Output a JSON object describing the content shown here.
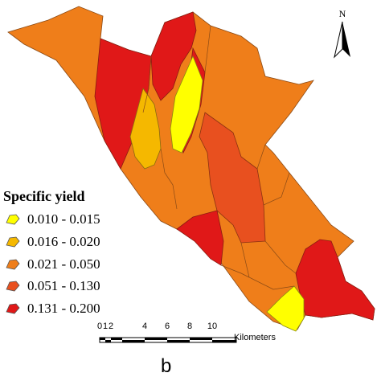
{
  "legend": {
    "title": "Specific yield",
    "items": [
      {
        "label": "0.010 - 0.015",
        "color": "#ffff00"
      },
      {
        "label": "0.016 - 0.020",
        "color": "#f5b800"
      },
      {
        "label": "0.021 - 0.050",
        "color": "#ef7e1a"
      },
      {
        "label": "0.051 - 0.130",
        "color": "#e8501f"
      },
      {
        "label": "0.131 - 0.200",
        "color": "#e01818"
      }
    ]
  },
  "north_arrow": {
    "letter": "N"
  },
  "scale_bar": {
    "ticks": [
      "0",
      "1",
      "2",
      "4",
      "6",
      "8",
      "10"
    ],
    "unit": "Kilometers"
  },
  "panel_label": "b"
}
